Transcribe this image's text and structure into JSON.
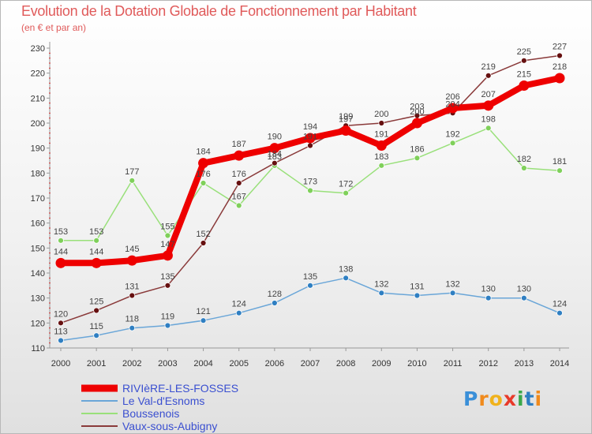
{
  "title": "Evolution de la Dotation Globale de Fonctionnement par Habitant",
  "subtitle": "(en € et par an)",
  "logo_text": "Proxiti",
  "chart_data": {
    "type": "line",
    "title": "Evolution de la Dotation Globale de Fonctionnement par Habitant",
    "subtitle": "(en € et par an)",
    "xlabel": "",
    "ylabel": "",
    "x": [
      2000,
      2001,
      2002,
      2003,
      2004,
      2005,
      2006,
      2007,
      2008,
      2009,
      2010,
      2011,
      2012,
      2013,
      2014
    ],
    "ylim": [
      110,
      230
    ],
    "yticks": [
      110,
      120,
      130,
      140,
      150,
      160,
      170,
      180,
      190,
      200,
      210,
      220,
      230
    ],
    "grid": false,
    "legend_position": "bottom-left",
    "series": [
      {
        "name": "RIVIèRE-LES-FOSSES",
        "color": "#ee0000",
        "marker": "#ee0000",
        "emphasis": true,
        "values": [
          144,
          144,
          145,
          147,
          184,
          187,
          190,
          194,
          197,
          191,
          200,
          206,
          207,
          215,
          218
        ]
      },
      {
        "name": "Le Val-d'Esnoms",
        "color": "#6aa6d8",
        "marker": "#2f7fc2",
        "emphasis": false,
        "values": [
          113,
          115,
          118,
          119,
          121,
          124,
          128,
          135,
          138,
          132,
          131,
          132,
          130,
          130,
          124
        ]
      },
      {
        "name": "Boussenois",
        "color": "#99e07a",
        "marker": "#7fd05a",
        "emphasis": false,
        "values": [
          153,
          153,
          177,
          155,
          176,
          167,
          183,
          173,
          172,
          183,
          186,
          192,
          198,
          182,
          181
        ]
      },
      {
        "name": "Vaux-sous-Aubigny",
        "color": "#8a3a3a",
        "marker": "#661010",
        "emphasis": false,
        "values": [
          120,
          125,
          131,
          135,
          152,
          176,
          184,
          191,
          199,
          200,
          203,
          204,
          219,
          225,
          227
        ]
      }
    ],
    "label_order": [
      1,
      2,
      3,
      0
    ]
  }
}
